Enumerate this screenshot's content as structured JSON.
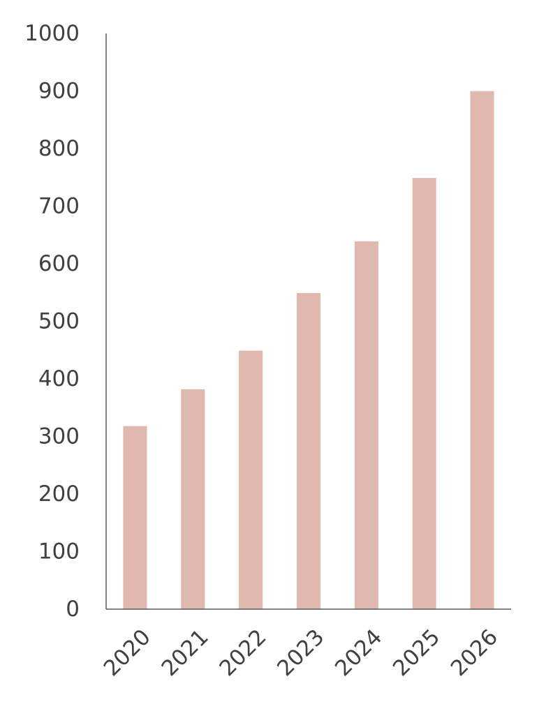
{
  "chart_data": {
    "type": "bar",
    "title": "",
    "xlabel": "",
    "ylabel": "",
    "categories": [
      "2020",
      "2021",
      "2022",
      "2023",
      "2024",
      "2025",
      "2026"
    ],
    "values": [
      318,
      382,
      449,
      549,
      639,
      749,
      900
    ],
    "ylim": [
      0,
      1000
    ],
    "yticks": [
      "0",
      "100",
      "200",
      "300",
      "400",
      "500",
      "600",
      "700",
      "800",
      "900",
      "1000"
    ],
    "grid": false,
    "legend": "none",
    "colors": {
      "bar": "#e0b8ad",
      "axis": "#595959",
      "text": "#404040"
    }
  }
}
